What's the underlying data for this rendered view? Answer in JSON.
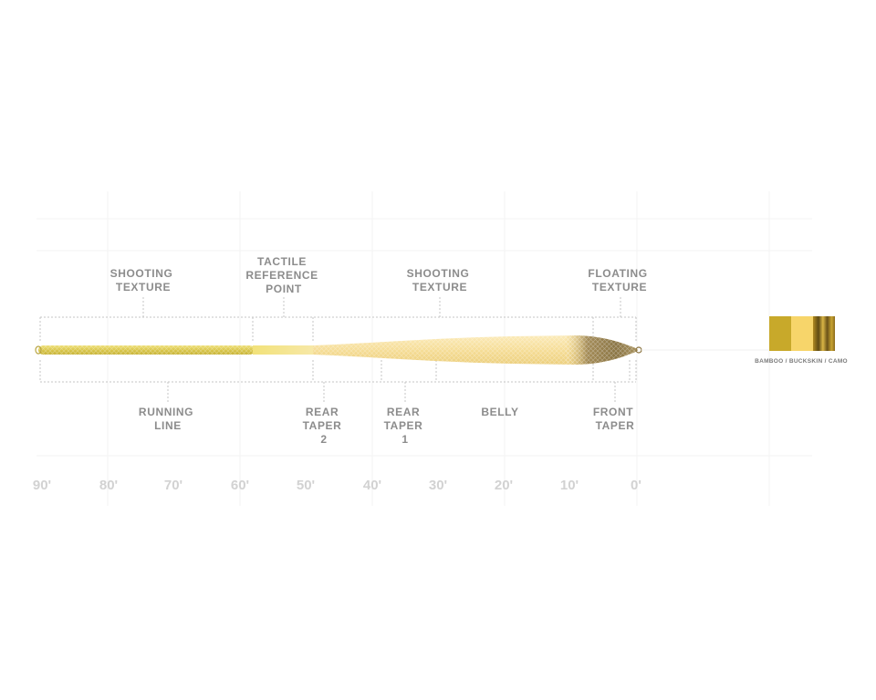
{
  "labels_top": [
    {
      "id": "shooting-texture-1",
      "lines": [
        "SHOOTING",
        "TEXTURE"
      ]
    },
    {
      "id": "tactile-reference-point",
      "lines": [
        "TACTILE",
        "REFERENCE",
        "POINT"
      ]
    },
    {
      "id": "shooting-texture-2",
      "lines": [
        "SHOOTING",
        "TEXTURE"
      ]
    },
    {
      "id": "floating-texture",
      "lines": [
        "FLOATING",
        "TEXTURE"
      ]
    }
  ],
  "labels_bottom": [
    {
      "id": "running-line",
      "lines": [
        "RUNNING",
        "LINE"
      ]
    },
    {
      "id": "rear-taper-2",
      "lines": [
        "REAR",
        "TAPER",
        "2"
      ]
    },
    {
      "id": "rear-taper-1",
      "lines": [
        "REAR",
        "TAPER",
        "1"
      ]
    },
    {
      "id": "belly",
      "lines": [
        "BELLY"
      ]
    },
    {
      "id": "front-taper",
      "lines": [
        "FRONT",
        "TAPER"
      ]
    }
  ],
  "axis_ticks": [
    "90'",
    "80'",
    "70'",
    "60'",
    "50'",
    "40'",
    "30'",
    "20'",
    "10'",
    "0'"
  ],
  "color_caption": "BAMBOO / BUCKSKIN / CAMO",
  "colors": {
    "bamboo": "#c8a92a",
    "buckskin": "#f7d56a",
    "camo": "#9a7a1e",
    "running_line": "#e5d35a",
    "head": "#f7e4a5",
    "tip": "#8a7440"
  }
}
